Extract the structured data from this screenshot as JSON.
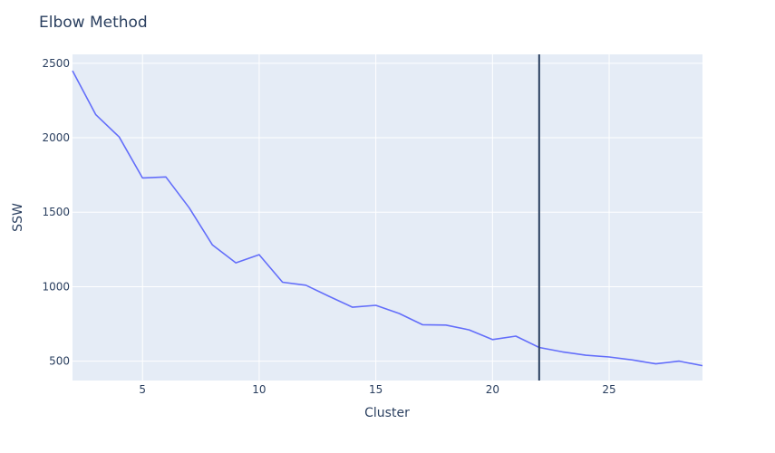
{
  "chart_data": {
    "type": "line",
    "title": "Elbow Method",
    "xlabel": "Cluster",
    "ylabel": "SSW",
    "xlim": [
      2,
      29
    ],
    "ylim": [
      370,
      2560
    ],
    "xticks": [
      5,
      10,
      15,
      20,
      25
    ],
    "yticks": [
      500,
      1000,
      1500,
      2000,
      2500
    ],
    "grid": true,
    "legend": "none",
    "series": [
      {
        "x": [
          2,
          3,
          4,
          5,
          6,
          7,
          8,
          9,
          10,
          11,
          12,
          13,
          14,
          15,
          16,
          17,
          18,
          19,
          20,
          21,
          22,
          23,
          24,
          25,
          26,
          27,
          28,
          29
        ],
        "values": [
          2450,
          2155,
          2005,
          1730,
          1737,
          1530,
          1280,
          1160,
          1215,
          1030,
          1010,
          935,
          862,
          875,
          820,
          745,
          742,
          710,
          645,
          668,
          592,
          562,
          540,
          528,
          508,
          482,
          500,
          470
        ],
        "color": "#636efa"
      }
    ],
    "vline": {
      "x": 22,
      "color": "#2a3f5f"
    },
    "colors": {
      "plot_bg": "#e5ecf6",
      "grid": "#ffffff",
      "text": "#2a3f5f"
    }
  }
}
